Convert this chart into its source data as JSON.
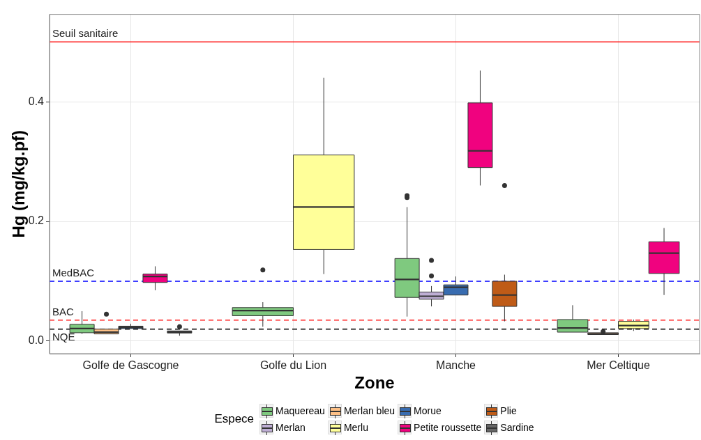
{
  "chart_data": {
    "type": "box",
    "xlabel": "Zone",
    "ylabel": "Hg (mg/kg.pf)",
    "legend_title": "Espece",
    "legend": "bottom",
    "grid": true,
    "categories": [
      "Golfe de Gascogne",
      "Golfe du Lion",
      "Manche",
      "Mer Celtique"
    ],
    "ylim": [
      -0.021,
      0.546
    ],
    "yticks": [
      {
        "value": 0,
        "label": "0.0"
      },
      {
        "value": 0.2,
        "label": "0.2"
      },
      {
        "value": 0.4,
        "label": "0.4"
      }
    ],
    "series": [
      {
        "name": "Maquereau",
        "color": "#7fc97f",
        "boxes": [
          {
            "low": 0.012,
            "q1": 0.014,
            "median": 0.021,
            "q3": 0.028,
            "high": 0.05
          },
          {
            "low": 0.024,
            "q1": 0.0425,
            "median": 0.051,
            "q3": 0.056,
            "high": 0.065,
            "outliers": [
              0.119
            ]
          },
          {
            "low": 0.041,
            "q1": 0.073,
            "median": 0.103,
            "q3": 0.138,
            "high": 0.224,
            "outliers": [
              0.24,
              0.243
            ]
          },
          {
            "low": 0.014,
            "q1": 0.015,
            "median": 0.022,
            "q3": 0.036,
            "high": 0.06
          }
        ]
      },
      {
        "name": "Merlan",
        "color": "#beaed4",
        "boxes": [
          null,
          null,
          {
            "low": 0.058,
            "q1": 0.07,
            "median": 0.075,
            "q3": 0.082,
            "high": 0.092,
            "outliers": [
              0.109,
              0.135
            ]
          },
          null
        ]
      },
      {
        "name": "Merlan bleu",
        "color": "#fdc086",
        "boxes": [
          {
            "low": 0.012,
            "q1": 0.012,
            "median": 0.015,
            "q3": 0.02,
            "high": 0.02,
            "outliers": [
              0.045
            ]
          },
          null,
          null,
          {
            "low": 0.011,
            "q1": 0.011,
            "median": 0.012,
            "q3": 0.014,
            "high": 0.014,
            "outliers": [
              0.016
            ]
          }
        ]
      },
      {
        "name": "Merlu",
        "color": "#ffff99",
        "boxes": [
          null,
          {
            "low": 0.112,
            "q1": 0.153,
            "median": 0.224,
            "q3": 0.311,
            "high": 0.44
          },
          null,
          {
            "low": 0.017,
            "q1": 0.021,
            "median": 0.026,
            "q3": 0.033,
            "high": 0.036
          }
        ]
      },
      {
        "name": "Morue",
        "color": "#386cb0",
        "boxes": [
          {
            "low": 0.021,
            "q1": 0.021,
            "median": 0.023,
            "q3": 0.025,
            "high": 0.029
          },
          null,
          {
            "low": 0.077,
            "q1": 0.077,
            "median": 0.09,
            "q3": 0.094,
            "high": 0.108
          },
          null
        ]
      },
      {
        "name": "Petite roussette",
        "color": "#f0027f",
        "boxes": [
          {
            "low": 0.085,
            "q1": 0.098,
            "median": 0.108,
            "q3": 0.112,
            "high": 0.125
          },
          null,
          {
            "low": 0.26,
            "q1": 0.29,
            "median": 0.318,
            "q3": 0.398,
            "high": 0.452
          },
          {
            "low": 0.077,
            "q1": 0.113,
            "median": 0.147,
            "q3": 0.166,
            "high": 0.189
          }
        ]
      },
      {
        "name": "Plie",
        "color": "#bf5b17",
        "boxes": [
          null,
          null,
          {
            "low": 0.033,
            "q1": 0.058,
            "median": 0.077,
            "q3": 0.1,
            "high": 0.111,
            "outliers": [
              0.26
            ]
          },
          null
        ]
      },
      {
        "name": "Sardine",
        "color": "#666666",
        "boxes": [
          {
            "low": 0.009,
            "q1": 0.0135,
            "median": 0.015,
            "q3": 0.017,
            "high": 0.017,
            "outliers": [
              0.024
            ]
          },
          null,
          null,
          null
        ]
      }
    ],
    "ref_lines": [
      {
        "axis": "y",
        "value": 0.5,
        "label": "Seuil sanitaire",
        "color": "#ff0000",
        "line_style": "solid"
      },
      {
        "axis": "y",
        "value": 0.1,
        "label": "MedBAC",
        "color": "#0000ff",
        "line_style": "dashed"
      },
      {
        "axis": "y",
        "value": 0.035,
        "label": "BAC",
        "color": "#ff0000",
        "line_style": "dashed"
      },
      {
        "axis": "y",
        "value": 0.02,
        "label": "NQE",
        "color": "#000000",
        "line_style": "dashed"
      }
    ]
  }
}
